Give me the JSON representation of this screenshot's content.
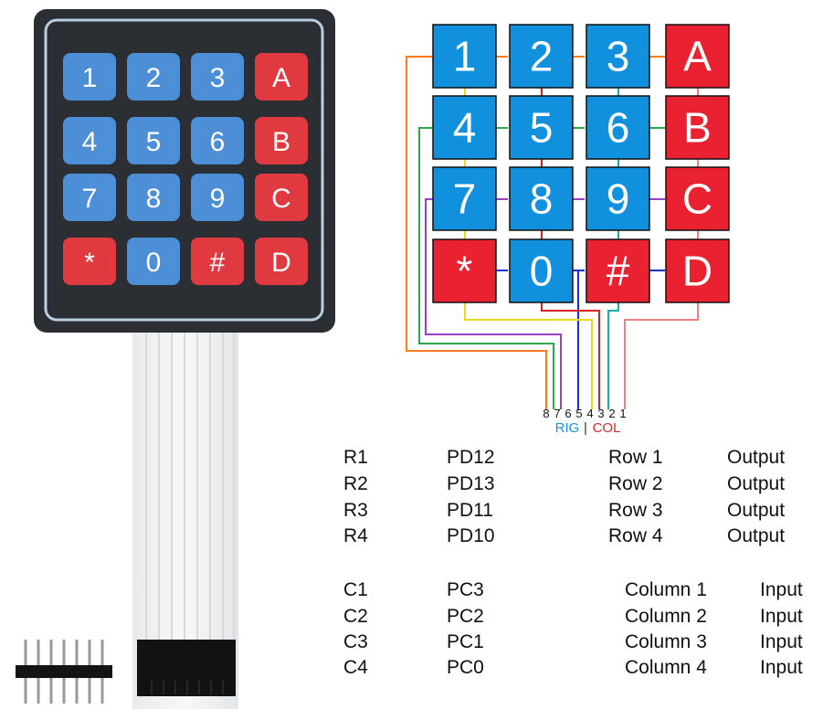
{
  "photo": {
    "keys": [
      [
        "1",
        "2",
        "3",
        "A"
      ],
      [
        "4",
        "5",
        "6",
        "B"
      ],
      [
        "7",
        "8",
        "9",
        "C"
      ],
      [
        "*",
        "0",
        "#",
        "D"
      ]
    ]
  },
  "diagram": {
    "keys": [
      [
        "1",
        "2",
        "3",
        "A"
      ],
      [
        "4",
        "5",
        "6",
        "B"
      ],
      [
        "7",
        "8",
        "9",
        "C"
      ],
      [
        "*",
        "0",
        "#",
        "D"
      ]
    ],
    "pin_numbers": [
      "8",
      "7",
      "6",
      "5",
      "4",
      "3",
      "2",
      "1"
    ],
    "rig_label": "RIG",
    "separator": "|",
    "col_label": "COL"
  },
  "rows_table": [
    {
      "name": "R1",
      "pin": "PD12",
      "desc": "Row 1",
      "mode": "Output"
    },
    {
      "name": "R2",
      "pin": "PD13",
      "desc": "Row 2",
      "mode": "Output"
    },
    {
      "name": "R3",
      "pin": "PD11",
      "desc": "Row 3",
      "mode": "Output"
    },
    {
      "name": "R4",
      "pin": "PD10",
      "desc": "Row 4",
      "mode": "Output"
    }
  ],
  "cols_table": [
    {
      "name": "C1",
      "pin": "PC3",
      "desc": "Column 1",
      "mode": "Input"
    },
    {
      "name": "C2",
      "pin": "PC2",
      "desc": "Column 2",
      "mode": "Input"
    },
    {
      "name": "C3",
      "pin": "PC1",
      "desc": "Column 3",
      "mode": "Input"
    },
    {
      "name": "C4",
      "pin": "PC0",
      "desc": "Column 4",
      "mode": "Input"
    }
  ],
  "colors": {
    "blue_key": "#1190dd",
    "red_key": "#ea2130",
    "photo_blue": "#4c8fd6",
    "photo_red": "#e0393f",
    "pad_dark": "#2b2e33",
    "rig_text": "#1f8fd8",
    "col_text": "#e02a2a"
  }
}
